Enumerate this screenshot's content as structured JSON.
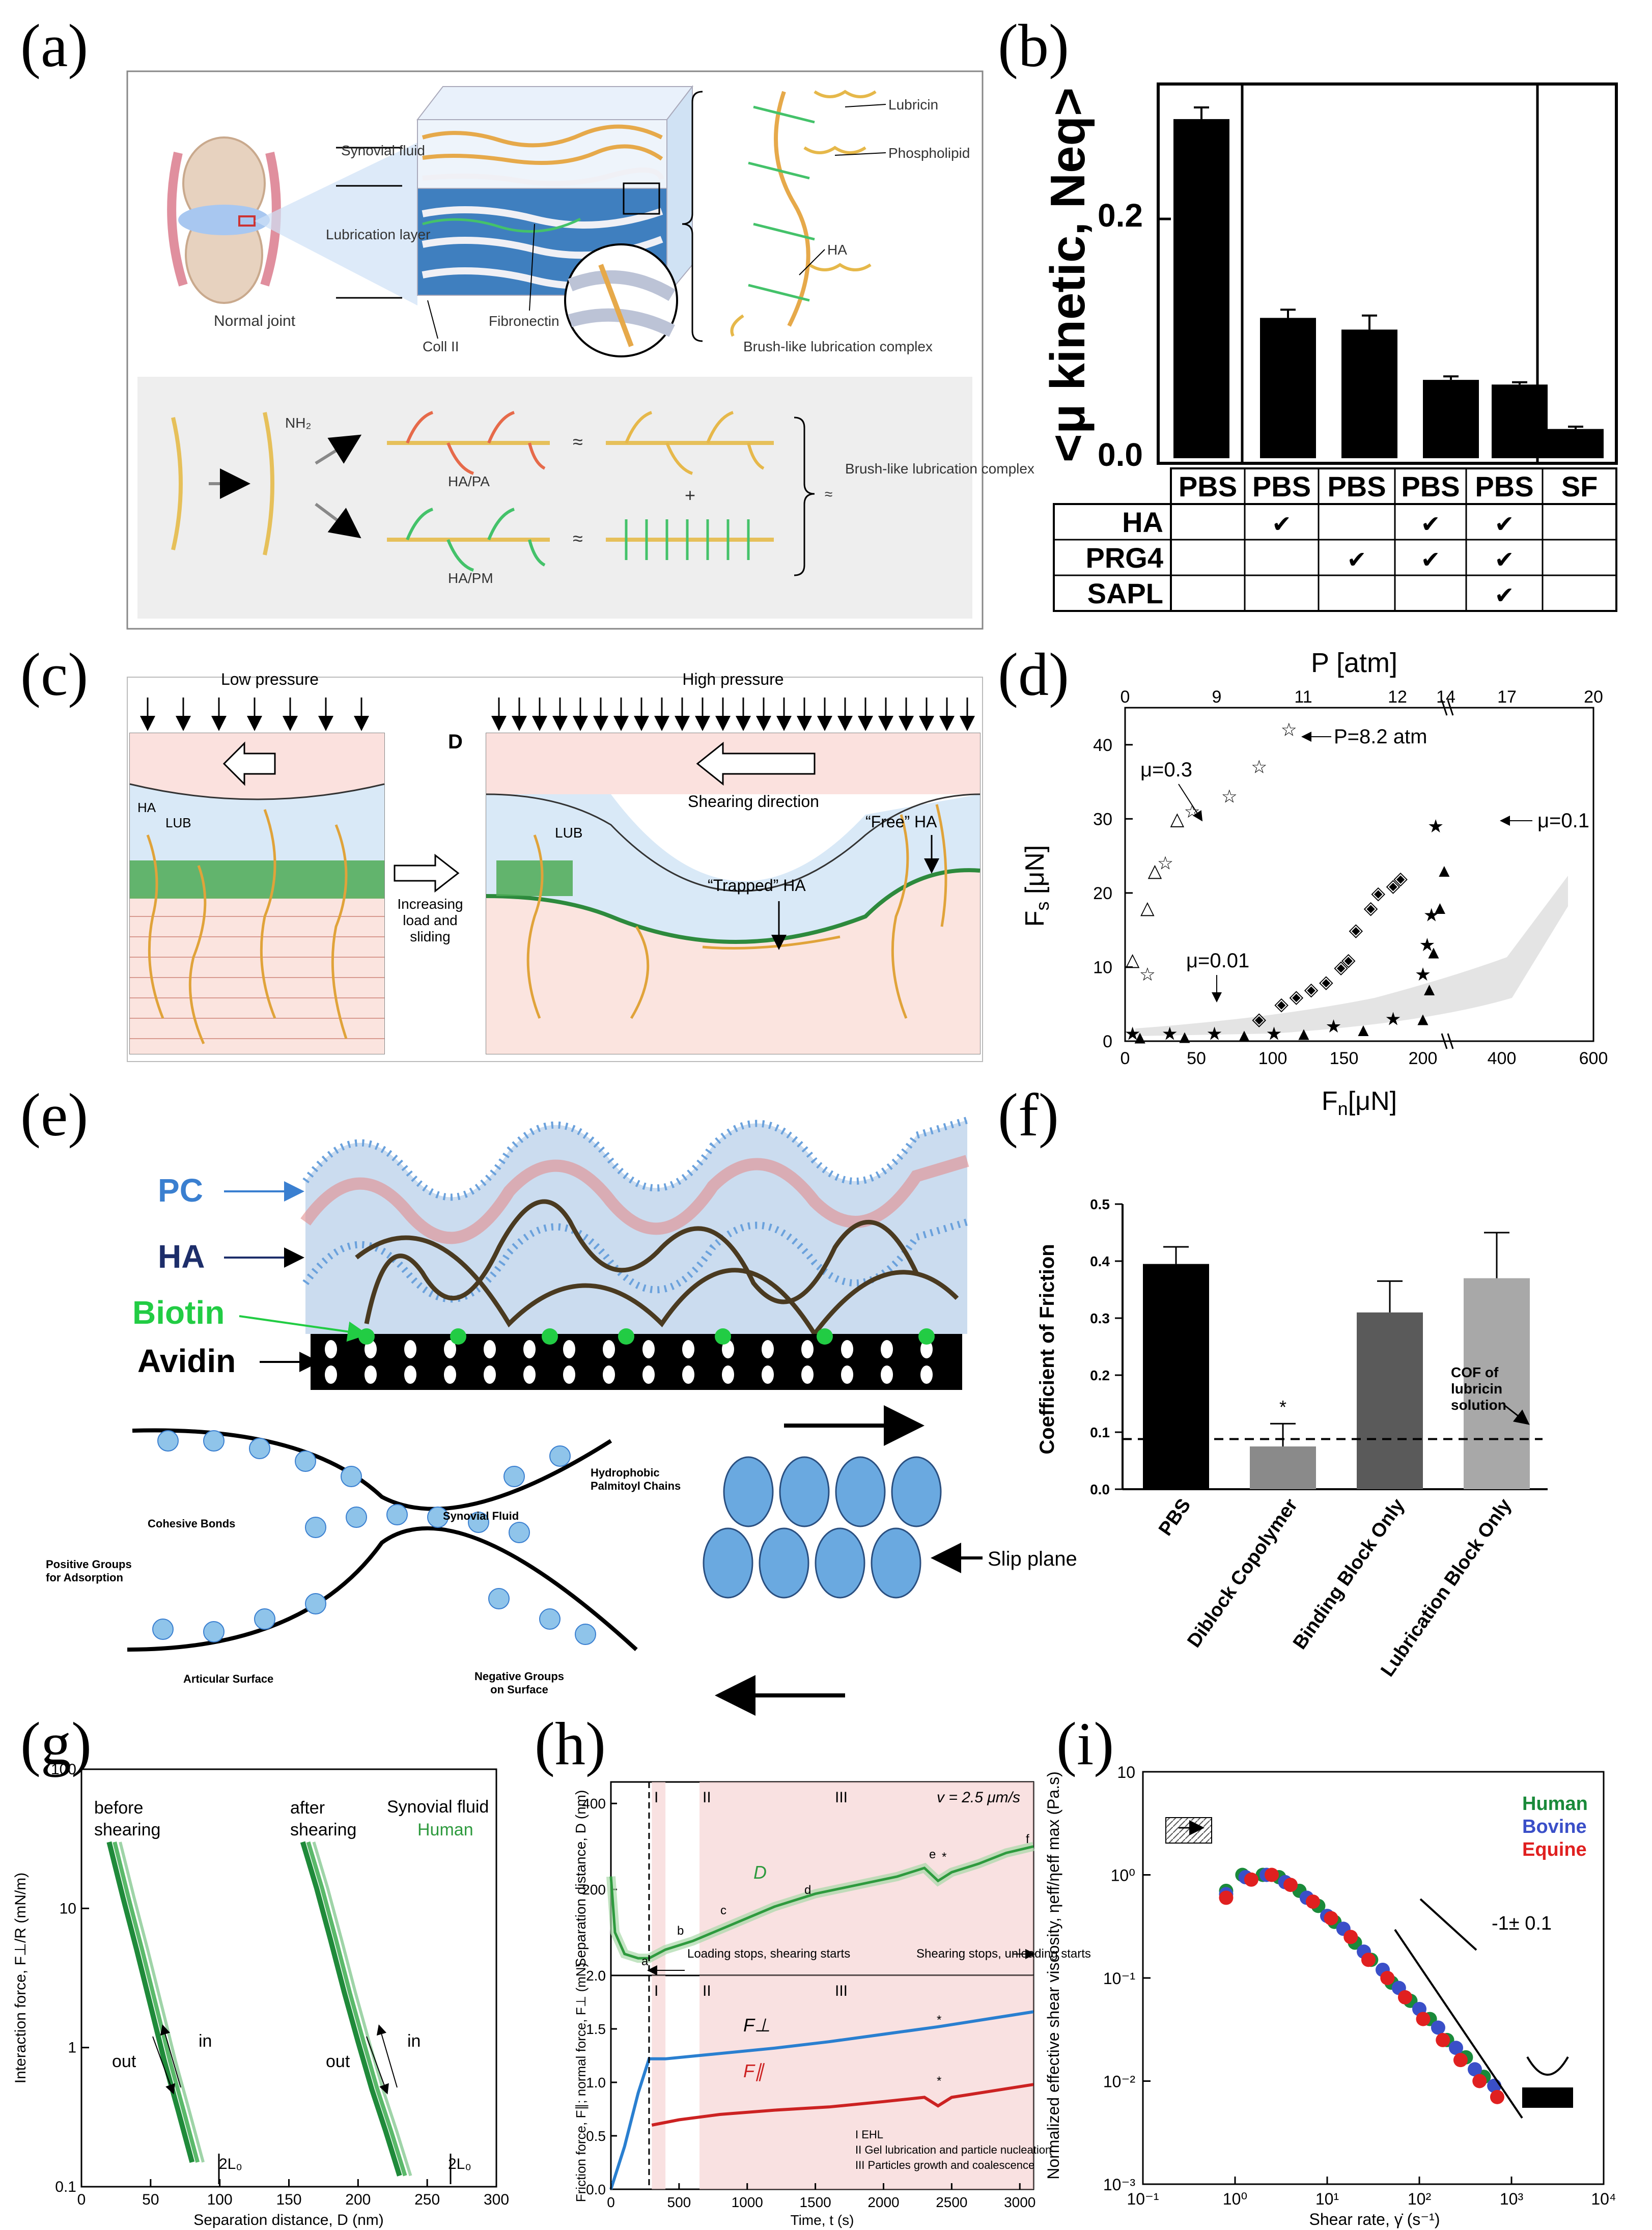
{
  "panels": {
    "a": {
      "letter": "(a)",
      "labels": {
        "synovial_fluid": "Synovial fluid",
        "lubrication_layer": "Lubrication layer",
        "normal_joint": "Normal joint",
        "fibronectin": "Fibronectin",
        "coll_ii": "Coll II",
        "lubricin": "Lubricin",
        "phospholipid": "Phospholipid",
        "ha": "HA",
        "brush_complex": "Brush-like lubrication complex",
        "nh2": "NH₂",
        "ha_pa": "HA/PA",
        "ha_pm": "HA/PM",
        "approx": "≈",
        "plus": "+",
        "brush_complex_2": "Brush-like lubrication complex"
      }
    },
    "b": {
      "letter": "(b)",
      "y_label": "<μ kinetic, Neq>",
      "y_ticks": [
        "0.0",
        "0.2"
      ],
      "table_headers": [
        "PBS",
        "PBS",
        "PBS",
        "PBS",
        "PBS",
        "SF"
      ],
      "table_rows": [
        {
          "label": "HA",
          "checks": [
            false,
            true,
            false,
            true,
            true,
            false
          ]
        },
        {
          "label": "PRG4",
          "checks": [
            false,
            false,
            true,
            true,
            true,
            false
          ]
        },
        {
          "label": "SAPL",
          "checks": [
            false,
            false,
            false,
            false,
            true,
            false
          ]
        }
      ],
      "check_mark": "✔"
    },
    "c": {
      "letter": "(c)",
      "labels": {
        "low_pressure": "Low pressure",
        "high_pressure": "High pressure",
        "d": "D",
        "shearing_direction": "Shearing direction",
        "ha": "HA",
        "lub": "LUB",
        "lub2": "LUB",
        "increasing": "Increasing load and sliding",
        "trapped_ha": "“Trapped” HA",
        "free_ha": "“Free” HA"
      }
    },
    "d": {
      "letter": "(d)",
      "top_axis_label": "P [atm]",
      "top_ticks": [
        "0",
        "9",
        "11",
        "12",
        "14",
        "17",
        "20"
      ],
      "y_label": "F",
      "y_label_sub": "s",
      "y_label_unit": " [μN]",
      "y_ticks": [
        "0",
        "10",
        "20",
        "30",
        "40"
      ],
      "x_label": "F",
      "x_label_sub": "n",
      "x_label_unit": "[μN]",
      "x_ticks": [
        "0",
        "50",
        "100",
        "150",
        "200",
        "400",
        "600"
      ],
      "annotations": {
        "mu03": "μ=0.3",
        "p82": "P=8.2 atm",
        "mu01": "μ=0.1",
        "mu001": "μ=0.01"
      }
    },
    "e": {
      "letter": "(e)",
      "labels": {
        "pc": "PC",
        "ha": "HA",
        "biotin": "Biotin",
        "avidin": "Avidin",
        "cohesive": "Cohesive Bonds",
        "synovial": "Synovial Fluid",
        "hydrophobic": "Hydrophobic Palmitoyl Chains",
        "positive": "Positive Groups for Adsorption",
        "articular": "Articular Surface",
        "negative": "Negative Groups on Surface",
        "slip": "Slip plane"
      }
    },
    "f": {
      "letter": "(f)",
      "annotation": "COF of lubricin solution",
      "star": "*"
    },
    "g": {
      "letter": "(g)",
      "labels": {
        "before": "before shearing",
        "after": "after shearing",
        "synovial": "Synovial fluid",
        "human": "Human",
        "out": "out",
        "in": "in",
        "out2": "out",
        "in2": "in",
        "l0": "2L₀",
        "l0b": "2L₀"
      },
      "y_label": "Interaction force, F⊥/R (mN/m)",
      "x_label": "Separation distance, D (nm)",
      "y_ticks": [
        "100",
        "10",
        "1",
        "0.1"
      ],
      "x_ticks": [
        "0",
        "50",
        "100",
        "150",
        "200",
        "250",
        "300"
      ]
    },
    "h": {
      "letter": "(h)",
      "speed": "v = 2.5 μm/s",
      "regions": [
        "I",
        "II",
        "III"
      ],
      "regions2": [
        "I",
        "II",
        "III"
      ],
      "top_y_label": "Separation distance, D (nm)",
      "top_y_ticks": [
        "0",
        "200",
        "400"
      ],
      "bottom_y_label": "Friction force, F∥; normal force, F⊥ (mN)",
      "bottom_y_ticks": [
        "0.0",
        "0.5",
        "1.0",
        "1.5",
        "2.0"
      ],
      "x_label": "Time, t (s)",
      "x_ticks": [
        "0",
        "500",
        "1000",
        "1500",
        "2000",
        "2500",
        "3000"
      ],
      "curve_D": "D",
      "curve_Fperp": "F⊥",
      "curve_Fpar": "F∥",
      "point_labels": [
        "a",
        "b",
        "c",
        "d",
        "e",
        "f"
      ],
      "star": "*",
      "loading_stops": "Loading stops, shearing starts",
      "shearing_stops": "Shearing stops, unloading starts",
      "legend": [
        "I EHL",
        "II Gel lubrication and particle nucleation",
        "III Particles growth and coalescence"
      ]
    },
    "i": {
      "letter": "(i)",
      "legend": [
        {
          "name": "Human",
          "color": "#1a8a3a"
        },
        {
          "name": "Bovine",
          "color": "#3a4fc8"
        },
        {
          "name": "Equine",
          "color": "#e02020"
        }
      ],
      "slope": "-1± 0.1",
      "y_label": "Normalized effective shear viscosity, ηeff/ηeff max (Pa.s)",
      "x_label": "Shear rate, γ̇ (s⁻¹)",
      "y_ticks": [
        "10",
        "10⁰",
        "10⁻¹",
        "10⁻²",
        "10⁻³"
      ],
      "x_ticks": [
        "10⁻¹",
        "10⁰",
        "10¹",
        "10²",
        "10³",
        "10⁴"
      ]
    }
  },
  "chart_data": [
    {
      "id": "b",
      "type": "bar",
      "categories": [
        "PBS",
        "PBS+HA",
        "PBS+PRG4",
        "PBS+HA+PRG4",
        "PBS+HA+PRG4+SAPL",
        "SF"
      ],
      "values": [
        0.29,
        0.12,
        0.11,
        0.067,
        0.063,
        0.025
      ],
      "errors": [
        0.01,
        0.007,
        0.012,
        0.003,
        0.002,
        0.002
      ],
      "ylabel": "<μ kinetic, Neq>",
      "ylim": [
        0,
        0.32
      ]
    },
    {
      "id": "d",
      "type": "scatter",
      "xlabel": "Fn [μN]",
      "ylabel": "Fs [μN]",
      "ylim": [
        0,
        45
      ],
      "series": [
        {
          "name": "open triangles",
          "marker": "triangle-open",
          "x": [
            5,
            15,
            20,
            35
          ],
          "y": [
            11,
            18,
            23,
            30
          ]
        },
        {
          "name": "open stars",
          "marker": "star-open",
          "x": [
            15,
            27,
            45,
            70,
            90,
            110
          ],
          "y": [
            9,
            24,
            31,
            33,
            37,
            42
          ]
        },
        {
          "name": "open diamonds",
          "marker": "diamond-open",
          "x": [
            90,
            105,
            115,
            125,
            135,
            145,
            150,
            155,
            165,
            170,
            180,
            185
          ],
          "y": [
            3,
            5,
            6,
            7,
            8,
            10,
            11,
            15,
            18,
            20,
            21,
            22
          ]
        },
        {
          "name": "filled stars",
          "marker": "star",
          "x": [
            5,
            30,
            60,
            100,
            140,
            180,
            200,
            210,
            220,
            230
          ],
          "y": [
            1,
            1,
            1,
            1,
            2,
            3,
            9,
            13,
            17,
            29
          ]
        },
        {
          "name": "filled triangles",
          "marker": "triangle",
          "x": [
            10,
            40,
            80,
            120,
            160,
            200,
            215,
            225,
            240,
            250
          ],
          "y": [
            0.5,
            0.6,
            0.8,
            1,
            1.5,
            3,
            7,
            12,
            18,
            23
          ]
        }
      ]
    },
    {
      "id": "f",
      "type": "bar",
      "categories": [
        "PBS",
        "Diblock Copolymer",
        "Binding Block Only",
        "Lubrication Block Only"
      ],
      "values": [
        0.395,
        0.075,
        0.31,
        0.37
      ],
      "errors": [
        0.03,
        0.04,
        0.055,
        0.08
      ],
      "colors": [
        "#000000",
        "#8a8a8a",
        "#5a5a5a",
        "#a8a8a8"
      ],
      "reference_line": 0.088,
      "ylabel": "Coefficient of Friction",
      "y_ticks": [
        0.0,
        0.1,
        0.2,
        0.3,
        0.4,
        0.5
      ],
      "ylim": [
        0,
        0.5
      ]
    },
    {
      "id": "g",
      "type": "line",
      "xlabel": "Separation distance, D (nm)",
      "ylabel": "Interaction force, F⊥/R (mN/m)",
      "xlim": [
        0,
        300
      ],
      "ylim": [
        0.1,
        100
      ],
      "yscale": "log",
      "series": [
        {
          "name": "before shearing",
          "x": [
            20,
            30,
            40,
            50,
            60,
            70,
            80
          ],
          "y": [
            30,
            12,
            5,
            2,
            0.8,
            0.35,
            0.15
          ]
        },
        {
          "name": "after shearing",
          "x": [
            160,
            170,
            180,
            190,
            200,
            210,
            220,
            230
          ],
          "y": [
            30,
            14,
            6,
            2.5,
            1.1,
            0.5,
            0.25,
            0.12
          ]
        }
      ]
    },
    {
      "id": "h_top",
      "type": "line",
      "xlabel": "Time, t (s)",
      "ylabel": "Separation distance, D (nm)",
      "xlim": [
        0,
        3100
      ],
      "ylim": [
        0,
        450
      ],
      "series": [
        {
          "name": "D",
          "x": [
            0,
            30,
            100,
            200,
            280,
            400,
            600,
            900,
            1200,
            1500,
            1800,
            2100,
            2300,
            2400,
            2500,
            2700,
            2900,
            3100
          ],
          "y": [
            230,
            100,
            50,
            40,
            40,
            60,
            80,
            120,
            160,
            190,
            210,
            230,
            250,
            220,
            240,
            260,
            285,
            300
          ]
        }
      ]
    },
    {
      "id": "h_bottom",
      "type": "line",
      "xlabel": "Time, t (s)",
      "ylabel": "Friction force, F∥; normal force, F⊥ (mN)",
      "xlim": [
        0,
        3100
      ],
      "ylim": [
        0,
        2
      ],
      "series": [
        {
          "name": "F⊥",
          "x": [
            0,
            100,
            200,
            280,
            400,
            800,
            1200,
            1600,
            2000,
            2400,
            2800,
            3100
          ],
          "y": [
            0,
            0.4,
            0.9,
            1.22,
            1.22,
            1.27,
            1.32,
            1.38,
            1.45,
            1.52,
            1.6,
            1.66
          ]
        },
        {
          "name": "F∥",
          "x": [
            300,
            500,
            800,
            1200,
            1600,
            2000,
            2300,
            2400,
            2500,
            2800,
            3100
          ],
          "y": [
            0.6,
            0.65,
            0.7,
            0.74,
            0.77,
            0.82,
            0.86,
            0.78,
            0.86,
            0.92,
            0.98
          ]
        }
      ]
    },
    {
      "id": "i",
      "type": "scatter",
      "xlabel": "Shear rate, γ̇ (s⁻¹)",
      "ylabel": "Normalized effective shear viscosity (Pa.s)",
      "xscale": "log",
      "yscale": "log",
      "xlim": [
        0.1,
        10000
      ],
      "ylim": [
        0.001,
        10
      ],
      "series": [
        {
          "name": "Human",
          "x": [
            0.8,
            1.2,
            2,
            3,
            5,
            8,
            12,
            20,
            30,
            50,
            80,
            130,
            200,
            320,
            500
          ],
          "y": [
            0.7,
            1.0,
            1.0,
            0.95,
            0.7,
            0.5,
            0.35,
            0.22,
            0.15,
            0.09,
            0.06,
            0.04,
            0.025,
            0.017,
            0.011
          ]
        },
        {
          "name": "Bovine",
          "x": [
            0.8,
            1.3,
            2.2,
            3.5,
            6,
            10,
            15,
            25,
            40,
            60,
            100,
            160,
            250,
            400,
            650
          ],
          "y": [
            0.65,
            0.95,
            1.0,
            0.85,
            0.6,
            0.4,
            0.3,
            0.18,
            0.12,
            0.08,
            0.05,
            0.033,
            0.021,
            0.013,
            0.009
          ]
        },
        {
          "name": "Equine",
          "x": [
            0.8,
            1.5,
            2.5,
            4,
            7,
            11,
            18,
            28,
            45,
            70,
            110,
            180,
            280,
            450,
            700
          ],
          "y": [
            0.6,
            0.9,
            1.0,
            0.8,
            0.55,
            0.38,
            0.25,
            0.15,
            0.1,
            0.065,
            0.04,
            0.025,
            0.016,
            0.01,
            0.007
          ]
        }
      ]
    }
  ]
}
